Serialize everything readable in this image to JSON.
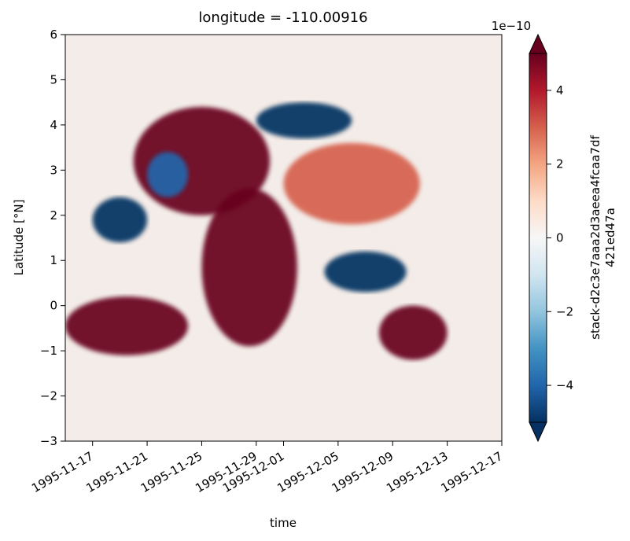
{
  "chart_data": {
    "type": "heatmap",
    "title": "longitude = -110.00916",
    "xlabel": "time",
    "ylabel": "Latitude [°N]",
    "x_range": [
      "1995-11-15",
      "1995-12-17"
    ],
    "ylim": [
      -3,
      6
    ],
    "x_ticks": [
      {
        "date": "1995-11-17",
        "label": "1995-11-17"
      },
      {
        "date": "1995-11-21",
        "label": "1995-11-21"
      },
      {
        "date": "1995-11-25",
        "label": "1995-11-25"
      },
      {
        "date": "1995-11-29",
        "label": "1995-11-29"
      },
      {
        "date": "1995-12-01",
        "label": "1995-12-01"
      },
      {
        "date": "1995-12-05",
        "label": "1995-12-05"
      },
      {
        "date": "1995-12-09",
        "label": "1995-12-09"
      },
      {
        "date": "1995-12-13",
        "label": "1995-12-13"
      },
      {
        "date": "1995-12-17",
        "label": "1995-12-17"
      }
    ],
    "y_ticks": [
      {
        "value": 6,
        "label": "6"
      },
      {
        "value": 5,
        "label": "5"
      },
      {
        "value": 4,
        "label": "4"
      },
      {
        "value": 3,
        "label": "3"
      },
      {
        "value": 2,
        "label": "2"
      },
      {
        "value": 1,
        "label": "1"
      },
      {
        "value": 0,
        "label": "0"
      },
      {
        "value": -1,
        "label": "−1"
      },
      {
        "value": -2,
        "label": "−2"
      },
      {
        "value": -3,
        "label": "−3"
      }
    ],
    "colorbar": {
      "label_lines": [
        "stack-d2c3e7aaa2d3aeea4fcaa7df",
        "421ed47a"
      ],
      "scale_label": "1e−10",
      "colormap": "RdBu_r",
      "vmin": -5,
      "vmax": 5,
      "extend": "both",
      "ticks": [
        {
          "value": 4,
          "label": "4"
        },
        {
          "value": 2,
          "label": "2"
        },
        {
          "value": 0,
          "label": "0"
        },
        {
          "value": -2,
          "label": "−2"
        },
        {
          "value": -4,
          "label": "−4"
        }
      ]
    },
    "features": [
      {
        "kind": "positive",
        "value": 5,
        "t0": "1995-11-25",
        "t1": "1995-12-02",
        "lat0": -0.9,
        "lat1": 2.6,
        "note": "diagonal tongue"
      },
      {
        "kind": "positive",
        "value": 5,
        "t0": "1995-11-20",
        "t1": "1995-11-30",
        "lat0": 2.0,
        "lat1": 4.4,
        "note": "arc band"
      },
      {
        "kind": "positive",
        "value": 3,
        "t0": "1995-12-01",
        "t1": "1995-12-11",
        "lat0": 1.8,
        "lat1": 3.6,
        "note": "striped region"
      },
      {
        "kind": "positive",
        "value": 5,
        "t0": "1995-11-15",
        "t1": "1995-11-24",
        "lat0": -1.1,
        "lat1": 0.2
      },
      {
        "kind": "positive",
        "value": 5,
        "t0": "1995-12-08",
        "t1": "1995-12-13",
        "lat0": -1.2,
        "lat1": 0.0
      },
      {
        "kind": "negative",
        "value": -5,
        "t0": "1995-11-29",
        "t1": "1995-12-06",
        "lat0": 3.7,
        "lat1": 4.5
      },
      {
        "kind": "negative",
        "value": -5,
        "t0": "1995-12-04",
        "t1": "1995-12-10",
        "lat0": 0.3,
        "lat1": 1.2
      },
      {
        "kind": "negative",
        "value": -5,
        "t0": "1995-11-17",
        "t1": "1995-11-21",
        "lat0": 1.4,
        "lat1": 2.4
      },
      {
        "kind": "negative",
        "value": -4,
        "t0": "1995-11-21",
        "t1": "1995-11-24",
        "lat0": 2.4,
        "lat1": 3.4
      }
    ]
  }
}
